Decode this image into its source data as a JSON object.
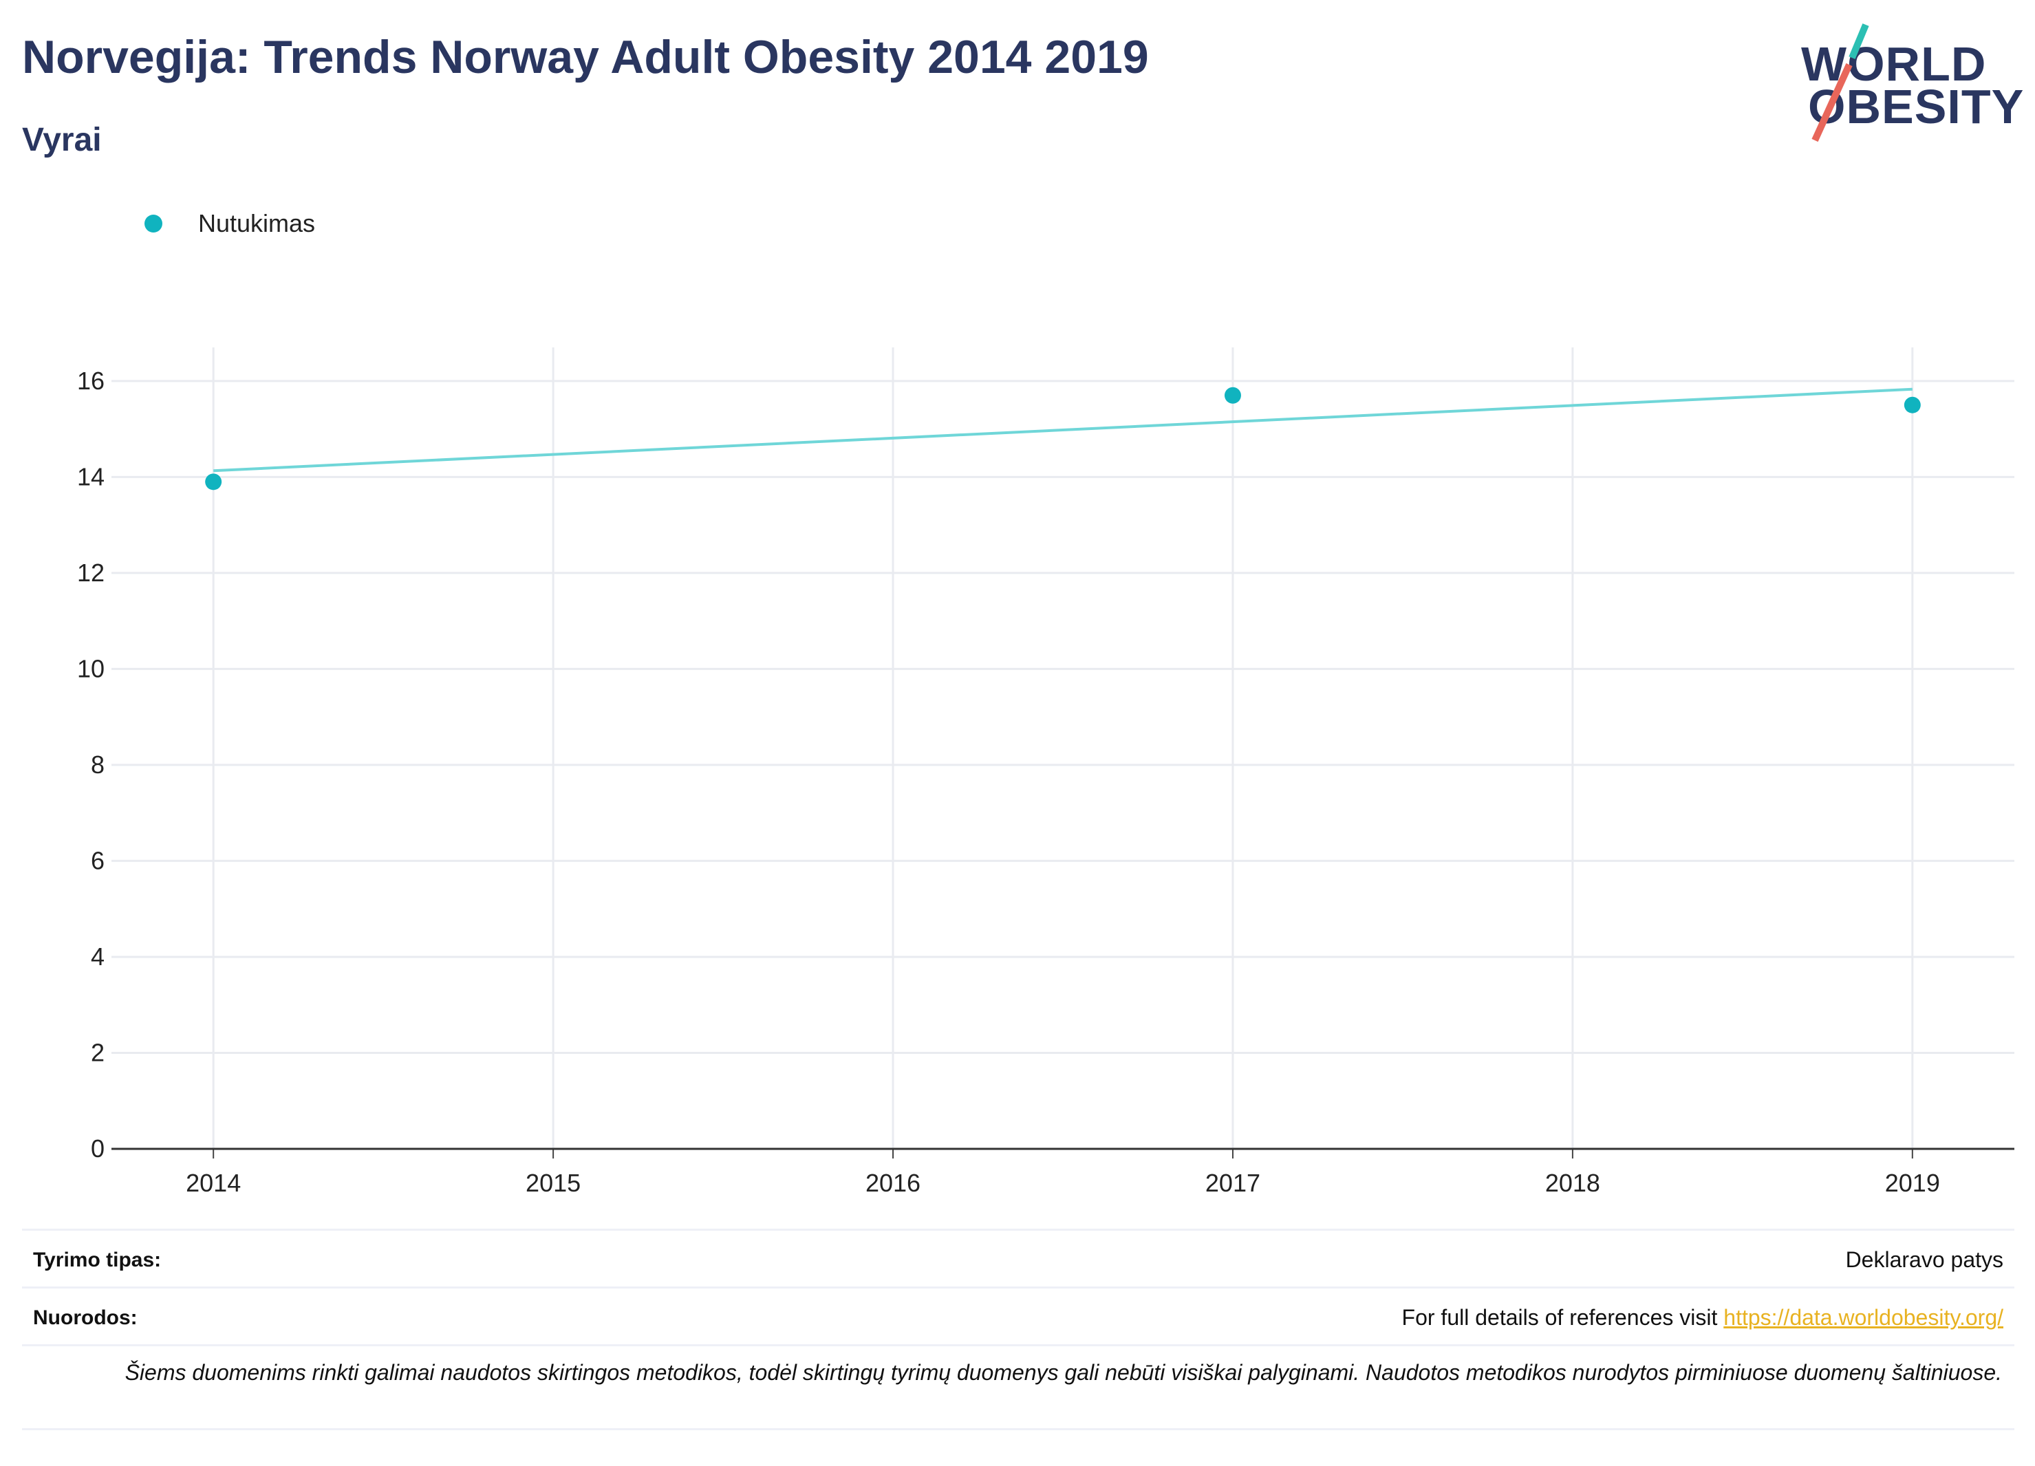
{
  "title": "Norvegija: Trends Norway Adult Obesity 2014 2019",
  "subtitle": "Vyrai",
  "logo": {
    "line1": "WORLD",
    "line2": "OBESITY",
    "accent_teal": "#2bbfb3",
    "accent_red": "#e8665a"
  },
  "legend": {
    "label": "Nutukimas",
    "color": "#10b3bf"
  },
  "chart_data": {
    "type": "scatter",
    "series": [
      {
        "name": "Nutukimas",
        "x": [
          2014,
          2017,
          2019
        ],
        "values": [
          13.9,
          15.7,
          15.5
        ],
        "color": "#10b3bf"
      }
    ],
    "trendline": {
      "x": [
        2014,
        2019
      ],
      "values": [
        14.13,
        15.83
      ],
      "color": "#6fd6d8"
    },
    "xlim": [
      2013.7,
      2019.3
    ],
    "ylim": [
      0,
      16.7
    ],
    "x_ticks": [
      2014,
      2015,
      2016,
      2017,
      2018,
      2019
    ],
    "y_ticks": [
      0,
      2,
      4,
      6,
      8,
      10,
      12,
      14,
      16
    ],
    "grid": true,
    "legend_position": "top-left",
    "xlabel": "",
    "ylabel": ""
  },
  "info": {
    "survey_type_label": "Tyrimo tipas:",
    "survey_type_value": "Deklaravo patys",
    "references_label": "Nuorodos:",
    "references_text": "For full details of references visit",
    "references_link": "https://data.worldobesity.org/",
    "note": "Šiems duomenims rinkti galimai naudotos skirtingos metodikos, todėl skirtingų tyrimų duomenys gali nebūti visiškai palyginami. Naudotos metodikos nurodytos pirminiuose duomenų šaltiniuose."
  }
}
